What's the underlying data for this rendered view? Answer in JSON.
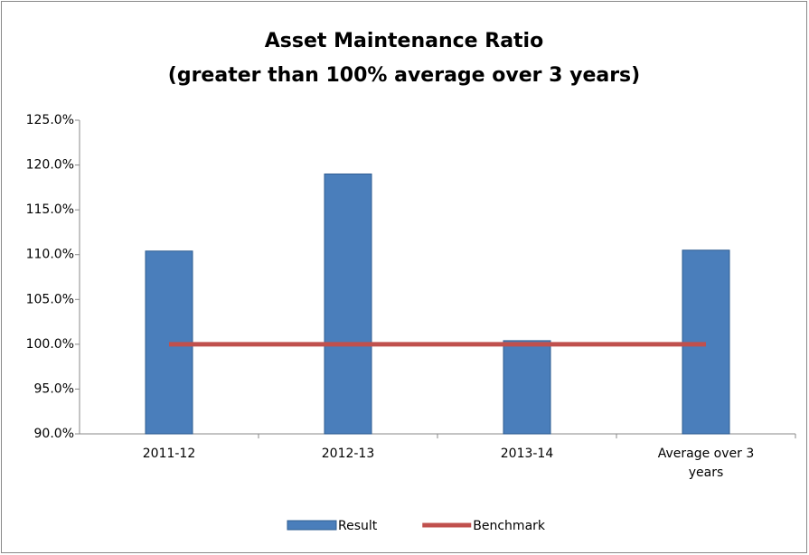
{
  "chart_data": {
    "type": "bar",
    "title": [
      "Asset Maintenance Ratio",
      "(greater than 100% average over 3 years)"
    ],
    "categories": [
      "2011-12",
      "2012-13",
      "2013-14",
      "Average over 3 years"
    ],
    "series": [
      {
        "name": "Result",
        "type": "bar",
        "color": "#4a7ebb",
        "values": [
          110.4,
          119.0,
          100.4,
          110.5
        ]
      },
      {
        "name": "Benchmark",
        "type": "line",
        "color": "#c0504d",
        "values": [
          100,
          100,
          100,
          100
        ]
      }
    ],
    "ylim": [
      90,
      125
    ],
    "yticks": [
      {
        "value": 90,
        "label": "90.0%"
      },
      {
        "value": 95,
        "label": "95.0%"
      },
      {
        "value": 100,
        "label": "100.0%"
      },
      {
        "value": 105,
        "label": "105.0%"
      },
      {
        "value": 110,
        "label": "110.0%"
      },
      {
        "value": 115,
        "label": "115.0%"
      },
      {
        "value": 120,
        "label": "120.0%"
      },
      {
        "value": 125,
        "label": "125.0%"
      }
    ],
    "grid": false,
    "legend": "bottom"
  }
}
